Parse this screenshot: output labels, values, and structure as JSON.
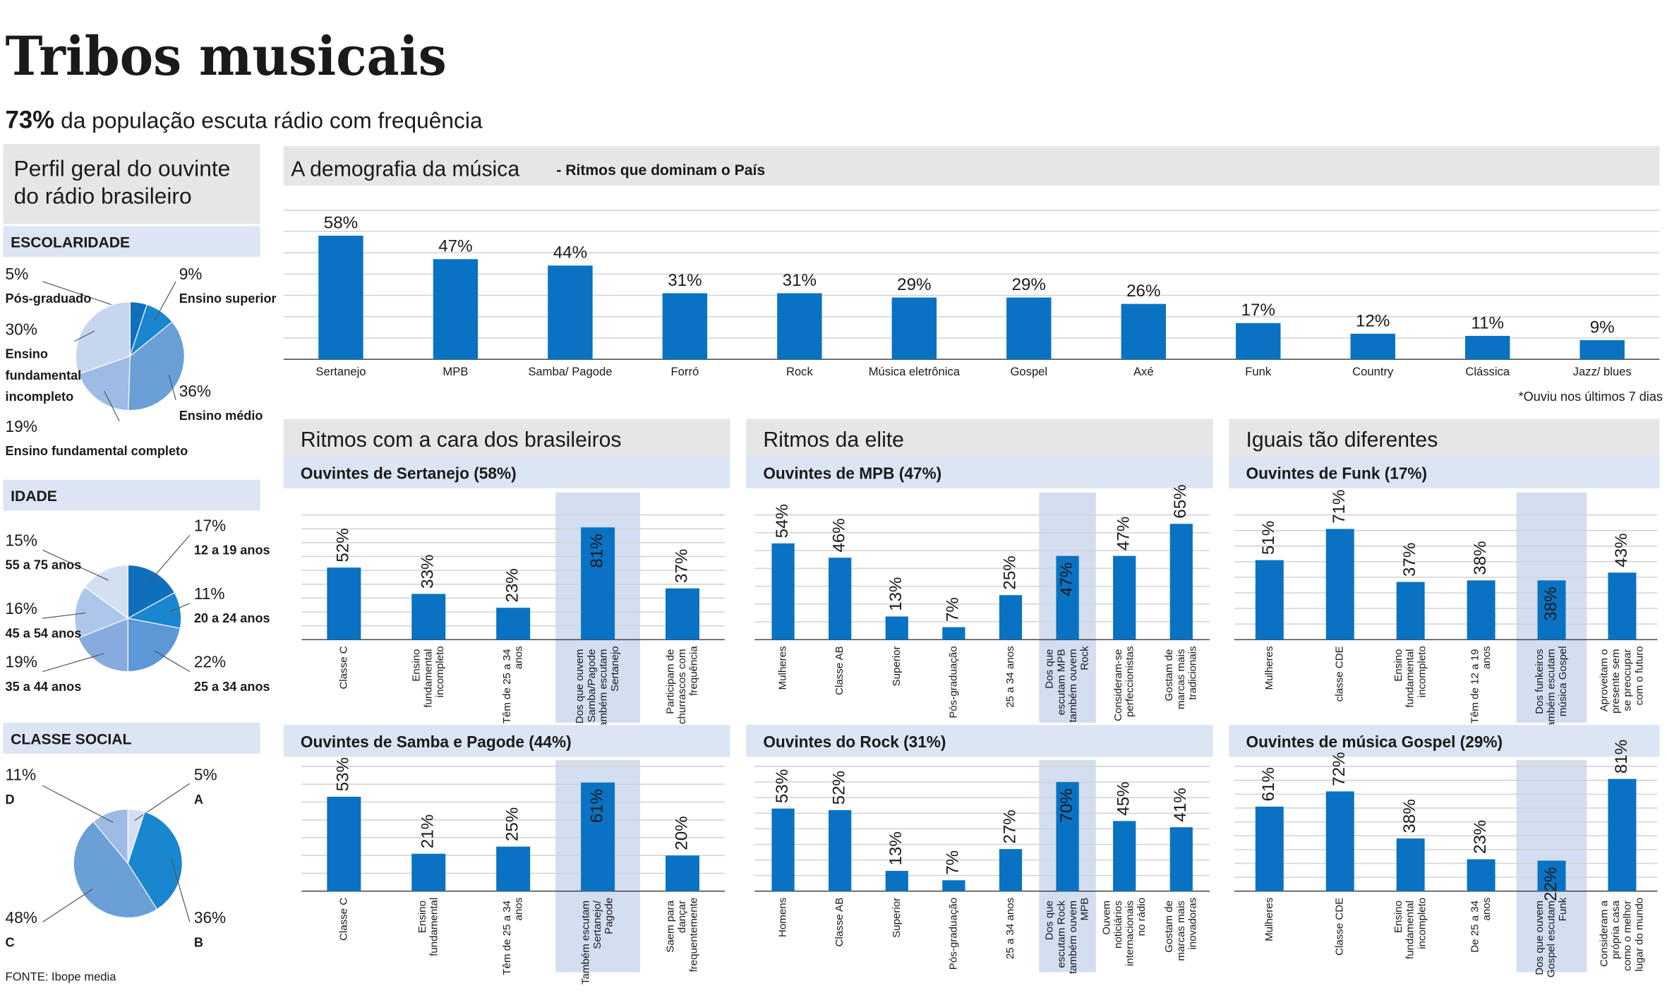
{
  "title": "Tribos musicais",
  "subtitle_highlight": "73%",
  "subtitle": "da população escuta rádio com frequência",
  "panel_title": "Perfil geral do ouvinte do rádio brasileiro",
  "sections": [
    "Ritmos com a cara dos brasileiros",
    "Ritmos da elite",
    "Iguais tão diferentes"
  ],
  "source": "FONTE: Ibope media",
  "chart_data": [
    {
      "type": "pie",
      "title": "ESCOLARIDADE",
      "categories": [
        "Pós-graduado",
        "Ensino superior",
        "Ensino médio",
        "Ensino fundamental completo",
        "Ensino fundamental incompleto"
      ],
      "values": [
        5,
        9,
        36,
        19,
        30
      ],
      "value_labels": [
        "5%",
        "9%",
        "36%",
        "19%",
        "30%"
      ],
      "colors": [
        "#0f6fbd",
        "#1a86d0",
        "#6a9fd8",
        "#9dbbe4",
        "#c6d6ef"
      ]
    },
    {
      "type": "pie",
      "title": "IDADE",
      "categories": [
        "12 a 19 anos",
        "20 a 24 anos",
        "25 a 34 anos",
        "35 a 44 anos",
        "45 a 54 anos",
        "55 a 75 anos"
      ],
      "values": [
        17,
        11,
        22,
        19,
        16,
        15
      ],
      "value_labels": [
        "17%",
        "11%",
        "22%",
        "19%",
        "16%",
        "15%"
      ],
      "colors": [
        "#0f6fbd",
        "#1a86d0",
        "#5d97d6",
        "#87abdf",
        "#aec6e9",
        "#d4e0f2"
      ]
    },
    {
      "type": "pie",
      "title": "CLASSE SOCIAL",
      "categories": [
        "A",
        "B",
        "C",
        "D"
      ],
      "values": [
        5,
        36,
        48,
        11
      ],
      "value_labels": [
        "5%",
        "36%",
        "48%",
        "11%"
      ],
      "colors": [
        "#d4e0f2",
        "#1a86d0",
        "#6a9fd8",
        "#9dbbe4"
      ]
    },
    {
      "type": "bar",
      "title": "A demografia da música",
      "subtitle": "- Ritmos que dominam o País",
      "note": "*Ouviu nos últimos 7 dias",
      "categories": [
        "Sertanejo",
        "MPB",
        "Samba/ Pagode",
        "Forró",
        "Rock",
        "Música eletrônica",
        "Gospel",
        "Axé",
        "Funk",
        "Country",
        "Clássica",
        "Jazz/ blues"
      ],
      "values": [
        58,
        47,
        44,
        31,
        31,
        29,
        29,
        26,
        17,
        12,
        11,
        9
      ],
      "value_labels": [
        "58%",
        "47%",
        "44%",
        "31%",
        "31%",
        "29%",
        "29%",
        "26%",
        "17%",
        "12%",
        "11%",
        "9%"
      ],
      "color": "#0a72c2",
      "ylim": [
        0,
        70
      ],
      "yticks": [
        0,
        10,
        20,
        30,
        40,
        50,
        60,
        70
      ]
    },
    {
      "type": "bar",
      "title": "Ouvintes de Sertanejo (58%)",
      "categories": [
        "Classe C",
        "Ensino fundamental incompleto",
        "Têm de 25 a 34 anos",
        "Dos que ouvem Samba/Pagode também escutam Sertanejo",
        "Participam de churrascos com frequência"
      ],
      "values": [
        52,
        33,
        23,
        81,
        37
      ],
      "value_labels": [
        "52%",
        "33%",
        "23%",
        "81%",
        "37%"
      ],
      "highlight": 3,
      "color": "#0a72c2",
      "ylim": [
        0,
        90
      ],
      "yticks": [
        0,
        10,
        20,
        30,
        40,
        50,
        60,
        70,
        80,
        90
      ]
    },
    {
      "type": "bar",
      "title": "Ouvintes de Samba e Pagode (44%)",
      "categories": [
        "Classe C",
        "Ensino fundamental",
        "Têm de 25 a 34 anos",
        "Também escutam Sertanejo/ Pagode",
        "Saem para dançar frequentemente"
      ],
      "values": [
        53,
        21,
        25,
        61,
        20
      ],
      "value_labels": [
        "53%",
        "21%",
        "25%",
        "61%",
        "20%"
      ],
      "highlight": 3,
      "color": "#0a72c2",
      "ylim": [
        0,
        70
      ],
      "yticks": [
        0,
        10,
        20,
        30,
        40,
        50,
        60,
        70
      ]
    },
    {
      "type": "bar",
      "title": "Ouvintes de MPB (47%)",
      "categories": [
        "Mulheres",
        "Classe AB",
        "Superior",
        "Pós-graduação",
        "25 a 34 anos",
        "Dos que escutam MPB também ouvem Rock",
        "Consideram-se perfeccionistas",
        "Gostam de marcas mais tradicionais"
      ],
      "values": [
        54,
        46,
        13,
        7,
        25,
        47,
        47,
        65
      ],
      "value_labels": [
        "54%",
        "46%",
        "13%",
        "7%",
        "25%",
        "47%",
        "47%",
        "65%"
      ],
      "highlight": 5,
      "color": "#0a72c2",
      "ylim": [
        0,
        70
      ],
      "yticks": [
        0,
        10,
        20,
        30,
        40,
        50,
        60,
        70
      ]
    },
    {
      "type": "bar",
      "title": "Ouvintes do Rock (31%)",
      "categories": [
        "Homens",
        "Classe AB",
        "Superior",
        "Pós-graduação",
        "25 a 34 anos",
        "Dos que escutam Rock também ouvem MPB",
        "Ouvem noticiários internacionais no rádio",
        "Gostam de marcas mais inovadoras"
      ],
      "values": [
        53,
        52,
        13,
        7,
        27,
        70,
        45,
        41
      ],
      "value_labels": [
        "53%",
        "52%",
        "13%",
        "7%",
        "27%",
        "70%",
        "45%",
        "41%"
      ],
      "highlight": 5,
      "color": "#0a72c2",
      "ylim": [
        0,
        80
      ],
      "yticks": [
        0,
        10,
        20,
        30,
        40,
        50,
        60,
        70,
        80
      ]
    },
    {
      "type": "bar",
      "title": "Ouvintes de Funk (17%)",
      "categories": [
        "Mulheres",
        "classe CDE",
        "Ensino fundamental incompleto",
        "Têm de 12 a 19 anos",
        "Dos funkeiros também escutam música Gospel",
        "Aproveitam o presente sem se preocupar com o futuro"
      ],
      "values": [
        51,
        71,
        37,
        38,
        38,
        43
      ],
      "value_labels": [
        "51%",
        "71%",
        "37%",
        "38%",
        "38%",
        "43%"
      ],
      "highlight": 4,
      "color": "#0a72c2",
      "ylim": [
        0,
        80
      ],
      "yticks": [
        0,
        10,
        20,
        30,
        40,
        50,
        60,
        70,
        80
      ]
    },
    {
      "type": "bar",
      "title": "Ouvintes de música Gospel (29%)",
      "categories": [
        "Mulheres",
        "Classe CDE",
        "Ensino fundamental incompleto",
        "De 25 a 34 anos",
        "Dos que ouvem Gospel escutam Funk",
        "Consideram a própria casa como o melhor lugar do mundo"
      ],
      "values": [
        61,
        72,
        38,
        23,
        22,
        81
      ],
      "value_labels": [
        "61%",
        "72%",
        "38%",
        "23%",
        "22%",
        "81%"
      ],
      "highlight": 4,
      "color": "#0a72c2",
      "ylim": [
        0,
        90
      ],
      "yticks": [
        0,
        10,
        20,
        30,
        40,
        50,
        60,
        70,
        80,
        90
      ]
    }
  ]
}
